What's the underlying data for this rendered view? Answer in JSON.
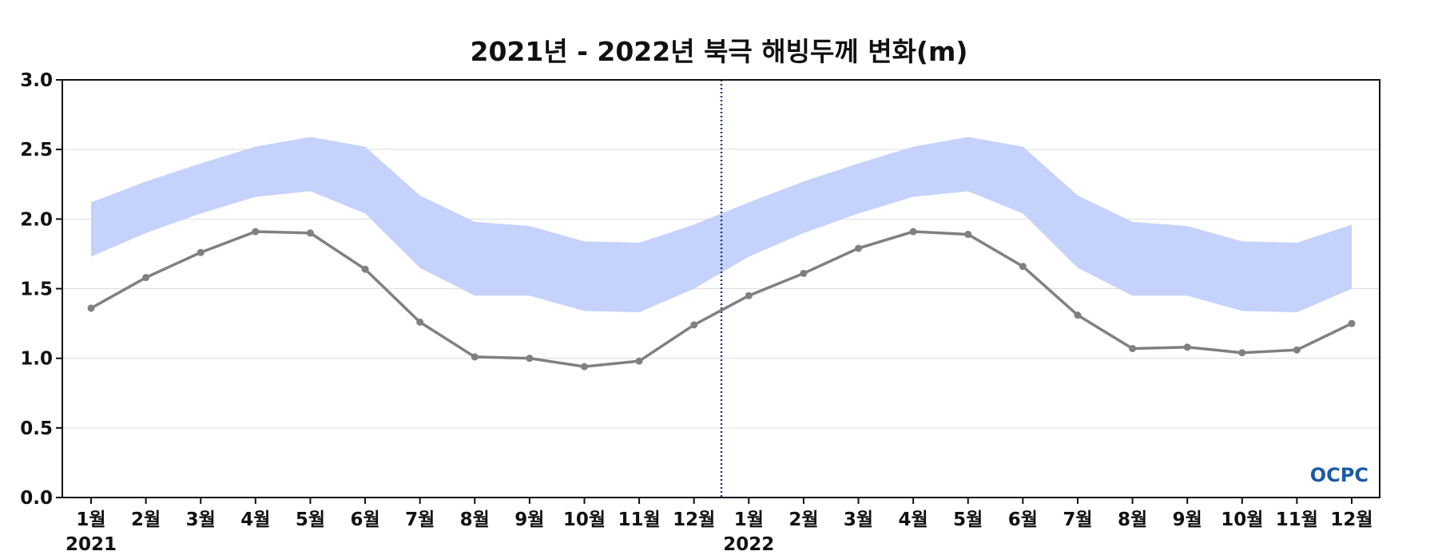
{
  "chart_data": {
    "type": "line",
    "title": "2021년 - 2022년 북극 해빙두께 변화(m)",
    "xlabel": "",
    "ylabel": "",
    "ylim": [
      0,
      3.0
    ],
    "yticks": [
      "0.0",
      "0.5",
      "1.0",
      "1.5",
      "2.0",
      "2.5",
      "3.0"
    ],
    "categories": [
      "1월",
      "2월",
      "3월",
      "4월",
      "5월",
      "6월",
      "7월",
      "8월",
      "9월",
      "10월",
      "11월",
      "12월",
      "1월",
      "2월",
      "3월",
      "4월",
      "5월",
      "6월",
      "7월",
      "8월",
      "9월",
      "10월",
      "11월",
      "12월"
    ],
    "year_labels": [
      "2021",
      "2022"
    ],
    "grid": true,
    "series": [
      {
        "name": "",
        "values": [
          1.36,
          1.58,
          1.76,
          1.91,
          1.9,
          1.64,
          1.26,
          1.01,
          1.0,
          0.94,
          0.98,
          1.24,
          1.45,
          1.61,
          1.79,
          1.91,
          1.89,
          1.66,
          1.31,
          1.07,
          1.08,
          1.04,
          1.06,
          1.25
        ]
      }
    ],
    "band": {
      "lower": [
        1.73,
        1.9,
        2.04,
        2.16,
        2.2,
        2.04,
        1.65,
        1.45,
        1.45,
        1.34,
        1.33,
        1.5,
        1.73,
        1.9,
        2.04,
        2.16,
        2.2,
        2.04,
        1.65,
        1.45,
        1.45,
        1.34,
        1.33,
        1.5
      ],
      "upper": [
        2.12,
        2.27,
        2.4,
        2.52,
        2.59,
        2.52,
        2.17,
        1.98,
        1.95,
        1.84,
        1.83,
        1.96,
        2.12,
        2.27,
        2.4,
        2.52,
        2.59,
        2.52,
        2.17,
        1.98,
        1.95,
        1.84,
        1.83,
        1.96
      ]
    },
    "colors": {
      "line": "#808080",
      "band": "#c5d2fb",
      "divider": "#1f3a7a",
      "grid": "#dddddd"
    }
  },
  "logo_text": "OCPC"
}
